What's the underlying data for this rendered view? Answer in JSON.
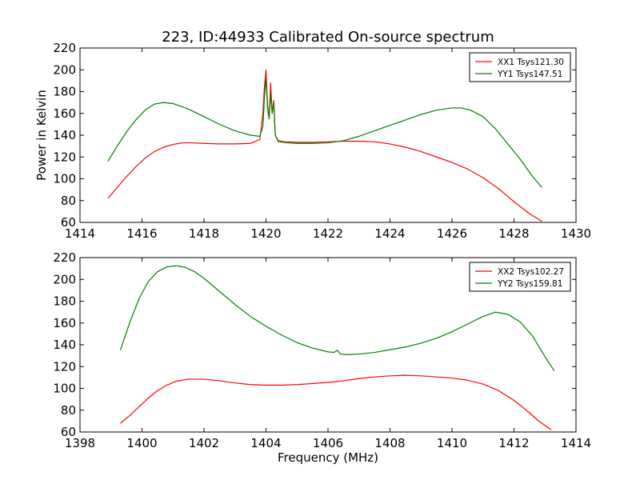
{
  "title": "223, ID:44933 Calibrated On-source spectrum",
  "colors": {
    "xx": "#ff0000",
    "yy": "#008000"
  },
  "chart_data": [
    {
      "type": "line",
      "title": "223, ID:44933 Calibrated On-source spectrum",
      "xlabel": "",
      "ylabel": "Power in Kelvin",
      "xlim": [
        1414,
        1430
      ],
      "ylim": [
        60,
        220
      ],
      "xticks": [
        1414,
        1416,
        1418,
        1420,
        1422,
        1424,
        1426,
        1428,
        1430
      ],
      "yticks": [
        60,
        80,
        100,
        120,
        140,
        160,
        180,
        200,
        220
      ],
      "grid": false,
      "legend_position": "top-right",
      "series": [
        {
          "name": "XX1 Tsys121.30",
          "color": "#ff0000",
          "x": [
            1414.9,
            1415.2,
            1415.5,
            1415.8,
            1416.1,
            1416.4,
            1416.7,
            1417.0,
            1417.3,
            1417.6,
            1418.0,
            1418.5,
            1419.0,
            1419.5,
            1419.8,
            1419.9,
            1419.95,
            1420.0,
            1420.05,
            1420.1,
            1420.15,
            1420.2,
            1420.25,
            1420.3,
            1420.4,
            1420.6,
            1421.0,
            1421.5,
            1422.0,
            1422.5,
            1423.0,
            1423.5,
            1424.0,
            1424.5,
            1425.0,
            1425.5,
            1426.0,
            1426.5,
            1427.0,
            1427.5,
            1428.0,
            1428.5,
            1428.9
          ],
          "y": [
            82,
            92,
            102,
            111,
            119,
            125,
            129,
            131.5,
            133,
            133,
            132.5,
            132,
            132,
            132.5,
            136,
            160,
            185,
            200,
            168,
            155,
            188,
            160,
            172,
            140,
            135,
            134,
            133.5,
            133.5,
            134,
            134.5,
            134.5,
            134,
            132,
            129,
            125,
            120,
            115,
            109,
            101,
            91,
            79,
            68,
            61
          ]
        },
        {
          "name": "YY1 Tsys147.51",
          "color": "#008000",
          "x": [
            1414.9,
            1415.2,
            1415.5,
            1415.8,
            1416.1,
            1416.4,
            1416.7,
            1417.0,
            1417.5,
            1418.0,
            1418.5,
            1419.0,
            1419.5,
            1419.8,
            1419.9,
            1419.95,
            1420.0,
            1420.05,
            1420.1,
            1420.15,
            1420.2,
            1420.25,
            1420.3,
            1420.4,
            1420.7,
            1421.0,
            1421.5,
            1422.0,
            1422.5,
            1423.0,
            1423.5,
            1424.0,
            1424.5,
            1425.0,
            1425.5,
            1426.0,
            1426.3,
            1426.6,
            1427.0,
            1427.4,
            1427.8,
            1428.2,
            1428.6,
            1428.9
          ],
          "y": [
            116,
            130,
            143,
            154,
            163,
            168.5,
            170,
            169,
            164,
            157,
            150,
            144,
            140,
            139,
            148,
            175,
            192,
            165,
            155,
            178,
            160,
            170,
            140,
            134,
            133,
            132.5,
            132.5,
            133,
            135,
            139,
            144,
            149,
            154,
            159,
            163,
            165,
            165,
            163,
            157,
            146,
            132,
            118,
            102,
            92
          ]
        }
      ]
    },
    {
      "type": "line",
      "title": "",
      "xlabel": "Frequency (MHz)",
      "ylabel": "",
      "xlim": [
        1398,
        1414
      ],
      "ylim": [
        60,
        220
      ],
      "xticks": [
        1398,
        1400,
        1402,
        1404,
        1406,
        1408,
        1410,
        1412,
        1414
      ],
      "yticks": [
        60,
        80,
        100,
        120,
        140,
        160,
        180,
        200,
        220
      ],
      "grid": false,
      "legend_position": "top-right",
      "series": [
        {
          "name": "XX2 Tsys102.27",
          "color": "#ff0000",
          "x": [
            1399.3,
            1399.6,
            1399.9,
            1400.2,
            1400.5,
            1400.8,
            1401.1,
            1401.5,
            1402.0,
            1402.5,
            1403.0,
            1403.5,
            1404.0,
            1404.5,
            1405.0,
            1405.5,
            1406.0,
            1406.5,
            1407.0,
            1407.5,
            1408.0,
            1408.5,
            1409.0,
            1409.5,
            1410.0,
            1410.5,
            1411.0,
            1411.5,
            1412.0,
            1412.4,
            1412.8,
            1413.2
          ],
          "y": [
            68,
            75,
            83,
            91,
            98,
            103,
            106.5,
            108.5,
            108.5,
            107,
            105,
            103.5,
            103,
            103,
            103.5,
            104.5,
            105.5,
            107,
            109,
            110.5,
            111.5,
            112,
            111.5,
            110.5,
            109.5,
            107.5,
            104,
            98,
            89,
            80,
            70,
            62
          ]
        },
        {
          "name": "YY2 Tsys159.81",
          "color": "#008000",
          "x": [
            1399.3,
            1399.6,
            1399.9,
            1400.2,
            1400.5,
            1400.8,
            1401.1,
            1401.4,
            1401.7,
            1402.0,
            1402.5,
            1403.0,
            1403.5,
            1404.0,
            1404.5,
            1405.0,
            1405.5,
            1406.0,
            1406.2,
            1406.3,
            1406.4,
            1406.6,
            1407.0,
            1407.5,
            1408.0,
            1408.5,
            1409.0,
            1409.5,
            1410.0,
            1410.5,
            1411.0,
            1411.4,
            1411.8,
            1412.2,
            1412.6,
            1413.0,
            1413.3
          ],
          "y": [
            135,
            160,
            182,
            198,
            207,
            211.5,
            212.5,
            211,
            207,
            201,
            189,
            177,
            166,
            157,
            149,
            142,
            137,
            133.5,
            133,
            135,
            131.5,
            131,
            131.5,
            133,
            135.5,
            138,
            141.5,
            146,
            152,
            159,
            166,
            170,
            168,
            161,
            148,
            129,
            116
          ]
        }
      ]
    }
  ]
}
